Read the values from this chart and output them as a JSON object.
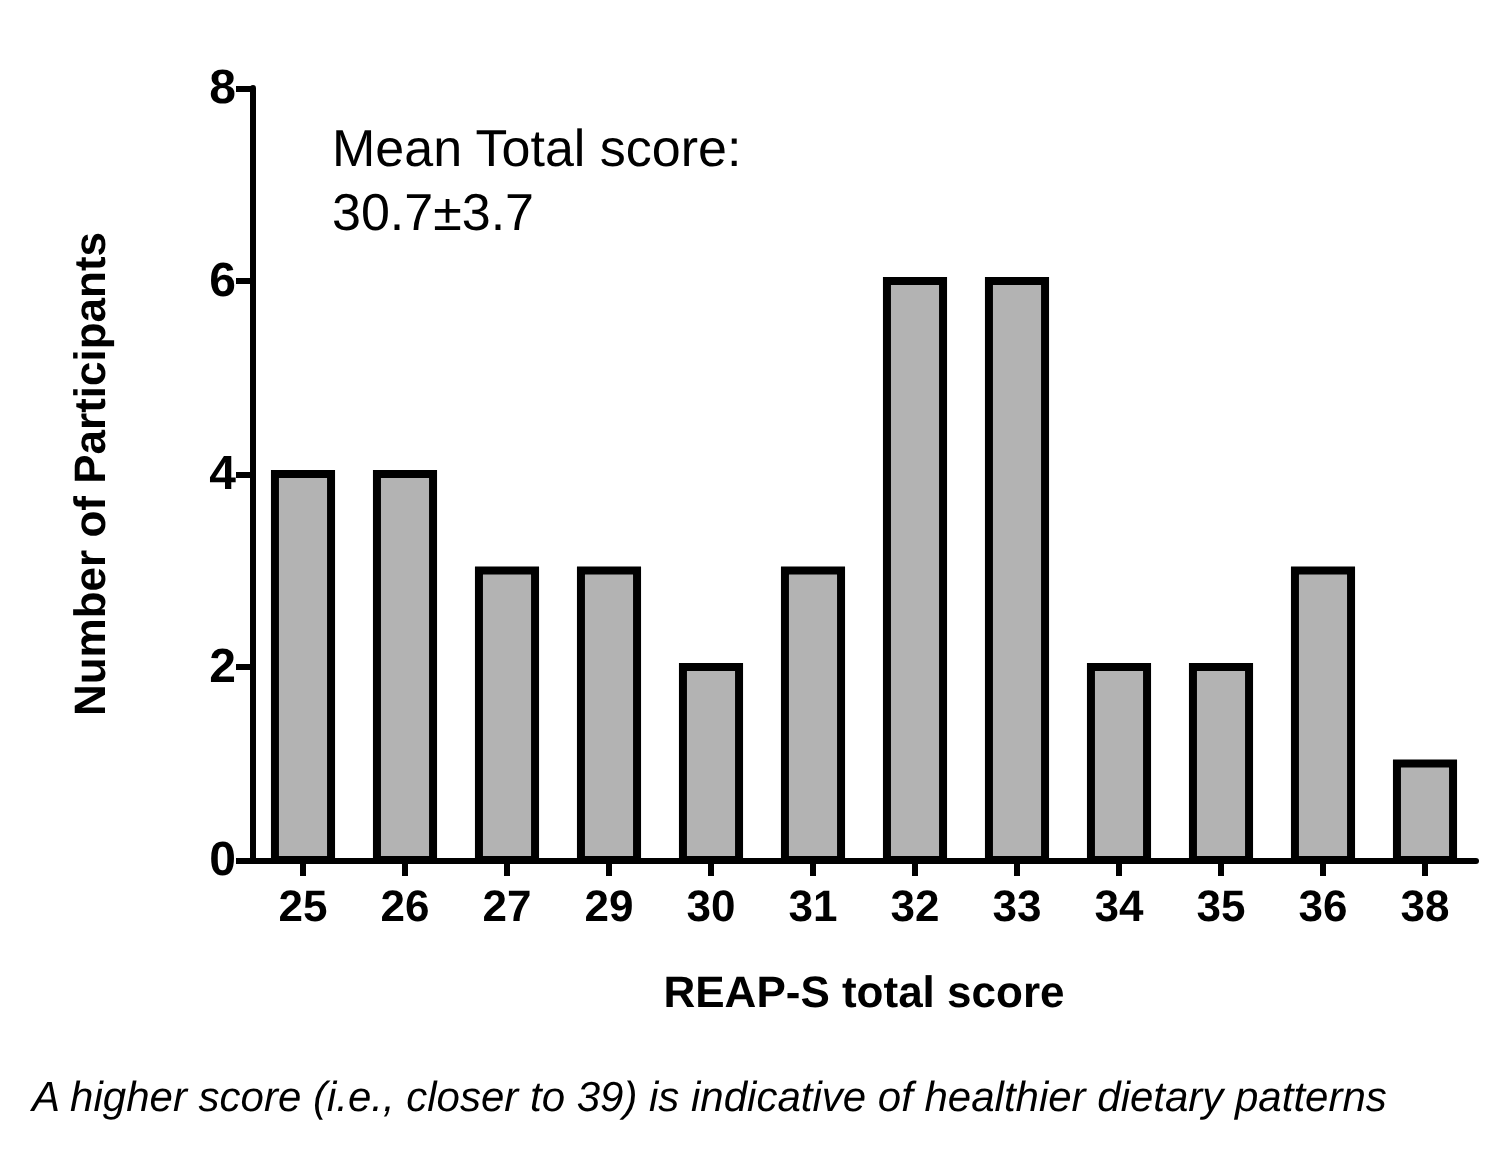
{
  "chart_data": {
    "type": "bar",
    "xlabel": "REAP-S total score",
    "ylabel": "Number of Participants",
    "categories": [
      "25",
      "26",
      "27",
      "29",
      "30",
      "31",
      "32",
      "33",
      "34",
      "35",
      "36",
      "38"
    ],
    "values": [
      4,
      4,
      3,
      3,
      2,
      3,
      6,
      6,
      2,
      2,
      3,
      1
    ],
    "color": "#b3b3b3",
    "ylim": [
      0,
      8
    ],
    "yticks": [
      0,
      2,
      4,
      6,
      8
    ],
    "grid": false,
    "annotations": [
      "Mean Total score:\n30.7±3.7",
      "A higher score (i.e., closer to 39) is indicative of healthier dietary patterns"
    ]
  }
}
